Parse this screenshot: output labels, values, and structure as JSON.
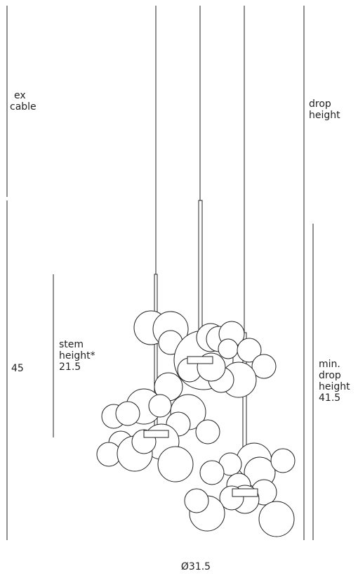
{
  "labels": {
    "ex_cable": [
      "ex",
      "cable"
    ],
    "drop_height": [
      "drop",
      "height"
    ],
    "overall_height": "45",
    "stem_height": [
      "stem",
      "height*",
      "21.5"
    ],
    "min_drop_height": [
      "min.",
      "drop",
      "height",
      "41.5"
    ],
    "diameter": "Ø31.5"
  }
}
